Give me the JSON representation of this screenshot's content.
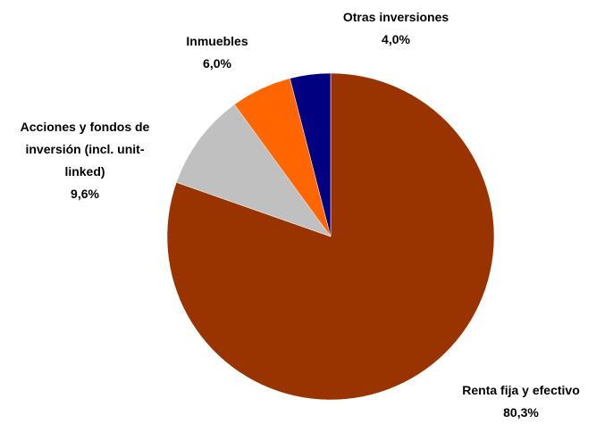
{
  "chart_data": {
    "type": "pie",
    "categories": [
      "Renta fija y efectivo",
      "Acciones y fondos de inversión (incl. unit-linked)",
      "Inmuebles",
      "Otras inversiones"
    ],
    "values": [
      80.3,
      9.6,
      6.0,
      4.0
    ],
    "value_labels": [
      "80,3%",
      "9,6%",
      "6,0%",
      "4,0%"
    ],
    "colors": [
      "#993300",
      "#c0c0c0",
      "#ff6600",
      "#000080"
    ]
  }
}
